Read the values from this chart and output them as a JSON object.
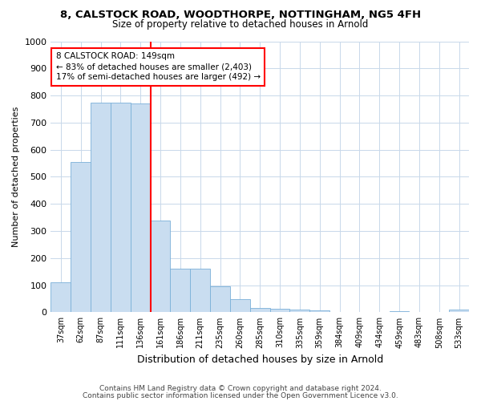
{
  "title1": "8, CALSTOCK ROAD, WOODTHORPE, NOTTINGHAM, NG5 4FH",
  "title2": "Size of property relative to detached houses in Arnold",
  "xlabel": "Distribution of detached houses by size in Arnold",
  "ylabel": "Number of detached properties",
  "categories": [
    "37sqm",
    "62sqm",
    "87sqm",
    "111sqm",
    "136sqm",
    "161sqm",
    "186sqm",
    "211sqm",
    "235sqm",
    "260sqm",
    "285sqm",
    "310sqm",
    "335sqm",
    "359sqm",
    "384sqm",
    "409sqm",
    "434sqm",
    "459sqm",
    "483sqm",
    "508sqm",
    "533sqm"
  ],
  "values": [
    110,
    555,
    775,
    775,
    770,
    340,
    160,
    160,
    95,
    50,
    15,
    12,
    10,
    8,
    0,
    0,
    0,
    5,
    0,
    0,
    10
  ],
  "bar_color": "#c9ddf0",
  "bar_edge_color": "#7ab0d8",
  "annotation_line": 4.5,
  "annotation_text_line1": "8 CALSTOCK ROAD: 149sqm",
  "annotation_text_line2": "← 83% of detached houses are smaller (2,403)",
  "annotation_text_line3": "17% of semi-detached houses are larger (492) →",
  "ylim": [
    0,
    1000
  ],
  "yticks": [
    0,
    100,
    200,
    300,
    400,
    500,
    600,
    700,
    800,
    900,
    1000
  ],
  "footer1": "Contains HM Land Registry data © Crown copyright and database right 2024.",
  "footer2": "Contains public sector information licensed under the Open Government Licence v3.0.",
  "bg_color": "#ffffff",
  "grid_color": "#c8d8ea",
  "title1_fontsize": 9.5,
  "title2_fontsize": 8.5,
  "ylabel_fontsize": 8,
  "xlabel_fontsize": 9,
  "tick_fontsize": 7,
  "annotation_fontsize": 7.5,
  "footer_fontsize": 6.5
}
